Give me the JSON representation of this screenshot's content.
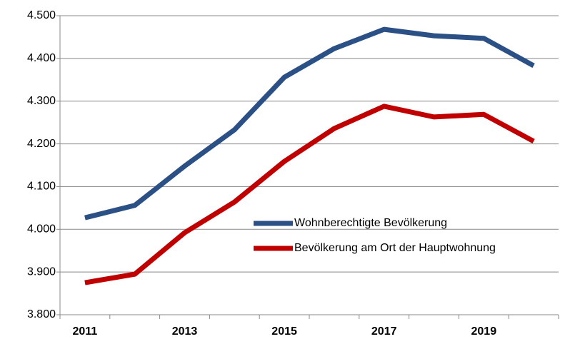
{
  "chart_data": {
    "type": "line",
    "categories": [
      "2011",
      null,
      "2013",
      null,
      "2015",
      null,
      "2017",
      null,
      "2019",
      null
    ],
    "series": [
      {
        "name": "Wohnberechtigte Bevölkerung",
        "color": "#2b5086",
        "values": [
          4027,
          4056,
          4148,
          4233,
          4356,
          4423,
          4468,
          4453,
          4447,
          4383
        ]
      },
      {
        "name": "Bevölkerung am Ort der Hauptwohnung",
        "color": "#c00000",
        "values": [
          3875,
          3895,
          3992,
          4064,
          4159,
          4236,
          4288,
          4263,
          4269,
          4206
        ]
      }
    ],
    "ylim": [
      3800,
      4500
    ],
    "yticks": [
      {
        "value": 3800,
        "label": "3.800"
      },
      {
        "value": 3900,
        "label": "3.900"
      },
      {
        "value": 4000,
        "label": "4.000"
      },
      {
        "value": 4100,
        "label": "4.100"
      },
      {
        "value": 4200,
        "label": "4.200"
      },
      {
        "value": 4300,
        "label": "4.300"
      },
      {
        "value": 4400,
        "label": "4.400"
      },
      {
        "value": 4500,
        "label": "4.500"
      }
    ],
    "grid": true
  }
}
